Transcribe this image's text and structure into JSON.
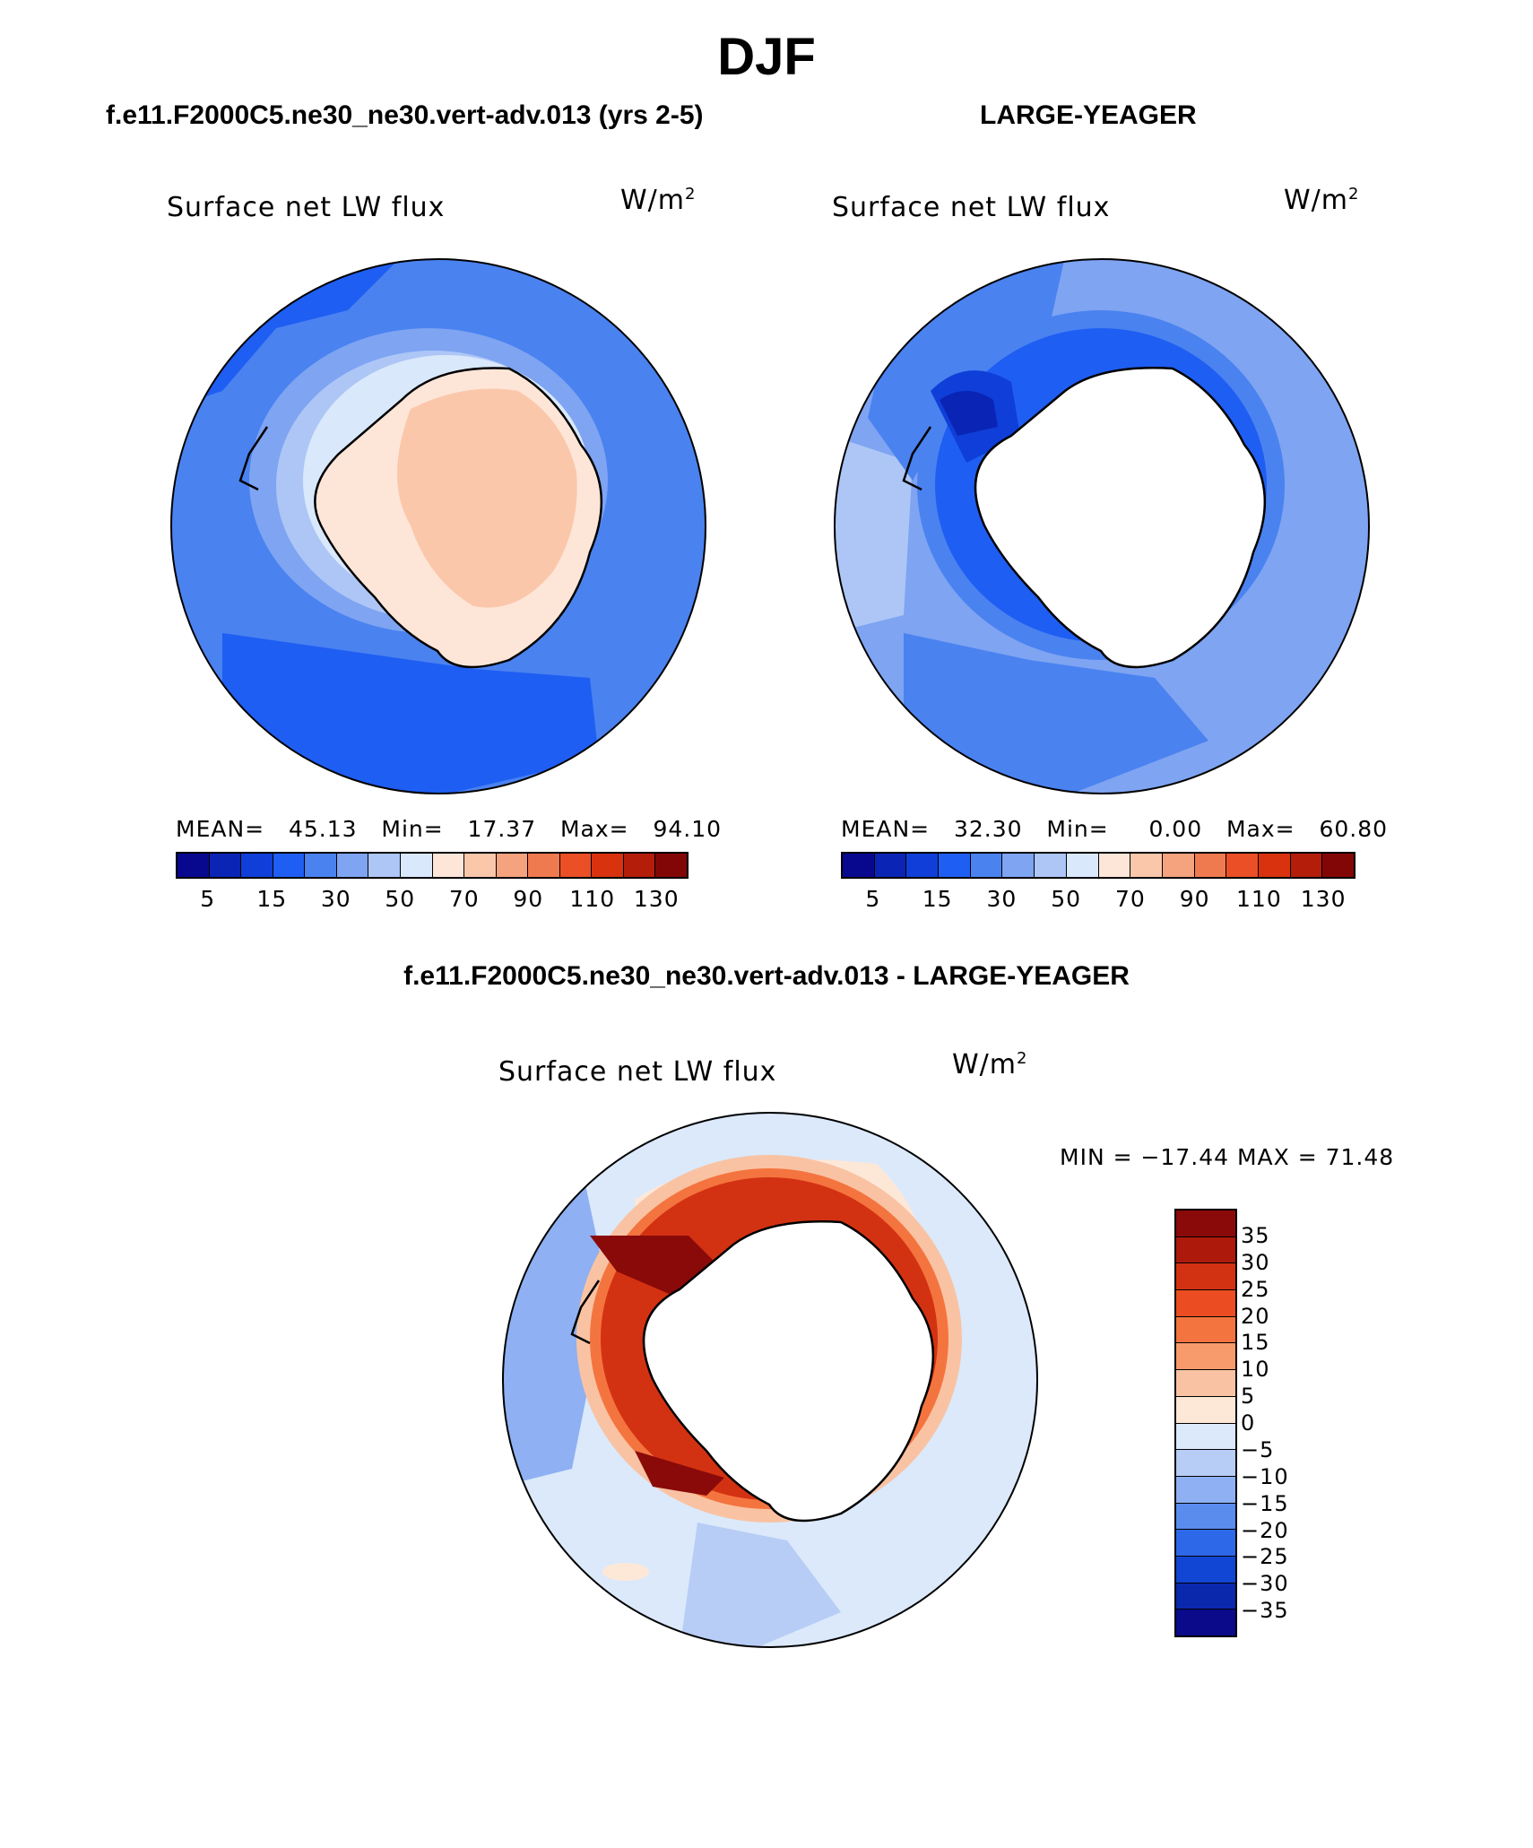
{
  "header": {
    "title": "DJF",
    "case_left": "f.e11.F2000C5.ne30_ne30.vert-adv.013 (yrs 2-5)",
    "case_right": "LARGE-YEAGER",
    "diff_title": "f.e11.F2000C5.ne30_ne30.vert-adv.013 - LARGE-YEAGER"
  },
  "panels": [
    {
      "id": "model",
      "variable": "Surface net LW flux",
      "units": "W/m",
      "units_sup": "2",
      "mean_label": "MEAN=",
      "mean": "45.13",
      "min_label": "Min=",
      "min": "17.37",
      "max_label": "Max=",
      "max": "94.10"
    },
    {
      "id": "obs",
      "variable": "Surface net LW flux",
      "units": "W/m",
      "units_sup": "2",
      "mean_label": "MEAN=",
      "mean": "32.30",
      "min_label": "Min=",
      "min": "0.00",
      "max_label": "Max=",
      "max": "60.80"
    }
  ],
  "colorbar_main": {
    "colors": [
      "#08088f",
      "#0a24b5",
      "#0f3fd8",
      "#1f5ef2",
      "#4a82f0",
      "#7ea4f2",
      "#adc6f6",
      "#d9e8fb",
      "#fde6d8",
      "#fbc7ab",
      "#f5a27e",
      "#f07a50",
      "#ea4f26",
      "#d8320f",
      "#b31d0a",
      "#820606"
    ],
    "tick_labels": [
      "5",
      "15",
      "30",
      "50",
      "70",
      "90",
      "110",
      "130"
    ]
  },
  "diff_panel": {
    "variable": "Surface net LW flux",
    "units": "W/m",
    "units_sup": "2",
    "minmax": "MIN = −17.44 MAX =  71.48"
  },
  "colorbar_diff": {
    "colors": [
      "#8a0a0a",
      "#ad1a0c",
      "#d33212",
      "#ec4c22",
      "#f4743f",
      "#f79a6c",
      "#f9c3a3",
      "#fde8d8",
      "#dbe9fb",
      "#b7cdf6",
      "#8fb0f2",
      "#5a8cee",
      "#2d68e8",
      "#1146d4",
      "#0a28ac",
      "#0a0a8a"
    ],
    "tick_labels": [
      "35",
      "30",
      "25",
      "20",
      "15",
      "10",
      "5",
      "0",
      "−5",
      "−10",
      "−15",
      "−20",
      "−25",
      "−30",
      "−35"
    ]
  }
}
